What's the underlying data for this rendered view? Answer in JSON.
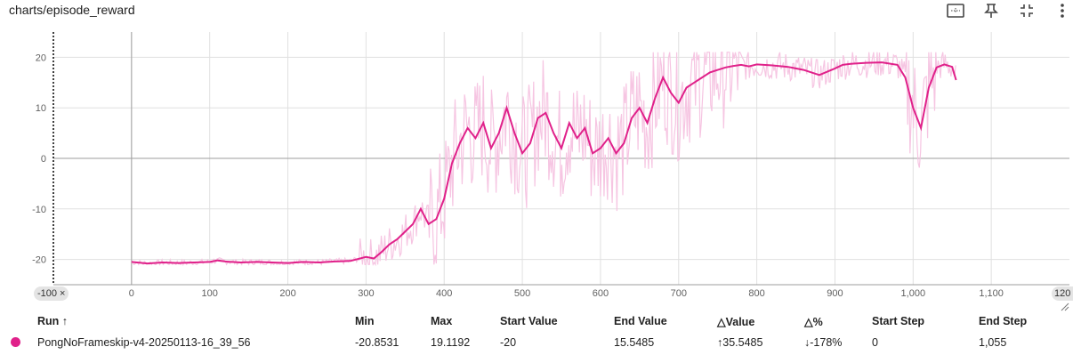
{
  "header": {
    "title": "charts/episode_reward",
    "tools": [
      "fit-domain-icon",
      "pin-icon",
      "collapse-icon",
      "more-vert-icon"
    ]
  },
  "axis_chips": {
    "x_min_label": "-100",
    "x_min_close": "×",
    "x_max_label": "120"
  },
  "colors": {
    "smoothed": "#e0218a",
    "raw": "#f6c5e2",
    "grid": "#e0e0e0",
    "zero_line": "#9e9e9e"
  },
  "chart_data": {
    "type": "line",
    "title": "",
    "xlabel": "",
    "ylabel": "",
    "xlim": [
      -100,
      1200
    ],
    "ylim": [
      -25,
      25
    ],
    "x_ticks": [
      "0",
      "100",
      "200",
      "300",
      "400",
      "500",
      "600",
      "700",
      "800",
      "900",
      "1,000",
      "1,100"
    ],
    "y_ticks": [
      "-20",
      "-10",
      "0",
      "10",
      "20"
    ],
    "grid": true,
    "series": [
      {
        "name": "PongNoFrameskip-v4-20250113-16_39_56",
        "x": [
          0,
          20,
          40,
          60,
          80,
          100,
          110,
          120,
          140,
          160,
          180,
          200,
          220,
          240,
          260,
          280,
          300,
          310,
          320,
          330,
          340,
          350,
          360,
          370,
          380,
          390,
          400,
          410,
          420,
          430,
          440,
          450,
          460,
          470,
          480,
          490,
          500,
          510,
          520,
          530,
          540,
          550,
          560,
          570,
          580,
          590,
          600,
          610,
          620,
          630,
          640,
          650,
          660,
          670,
          680,
          690,
          700,
          710,
          720,
          730,
          740,
          750,
          760,
          770,
          780,
          790,
          800,
          820,
          840,
          860,
          880,
          900,
          910,
          920,
          940,
          960,
          980,
          990,
          1000,
          1010,
          1020,
          1030,
          1040,
          1050,
          1055
        ],
        "y": [
          -20.5,
          -20.8,
          -20.6,
          -20.7,
          -20.6,
          -20.5,
          -20.2,
          -20.4,
          -20.6,
          -20.5,
          -20.6,
          -20.7,
          -20.5,
          -20.6,
          -20.4,
          -20.3,
          -19.5,
          -19.8,
          -18.5,
          -17,
          -16,
          -14.5,
          -13,
          -10,
          -13,
          -12,
          -8,
          -1,
          3,
          6,
          4,
          7,
          2,
          5,
          10,
          5,
          1,
          3,
          8,
          9,
          5,
          2,
          7,
          4,
          6,
          1,
          2,
          4,
          1,
          3,
          8,
          10,
          7,
          12,
          16,
          13,
          11,
          14,
          15,
          16,
          17,
          17.5,
          18,
          18.3,
          18.5,
          18.2,
          18.6,
          18.4,
          18.1,
          17.5,
          16.5,
          17.8,
          18.5,
          18.7,
          18.9,
          19,
          18.5,
          16,
          10,
          6,
          14,
          18,
          18.6,
          18.1,
          15.5
        ]
      }
    ]
  },
  "runs_table": {
    "headers": {
      "run": "Run ↑",
      "min": "Min",
      "max": "Max",
      "start_value": "Start Value",
      "end_value": "End Value",
      "delta_value": "△Value",
      "delta_pct": "△%",
      "start_step": "Start Step",
      "end_step": "End Step"
    },
    "rows": [
      {
        "run": "PongNoFrameskip-v4-20250113-16_39_56",
        "min": "-20.8531",
        "max": "19.1192",
        "start_value": "-20",
        "end_value": "15.5485",
        "delta_value": "35.5485",
        "delta_value_arrow": "↑",
        "delta_pct": "-178%",
        "delta_pct_arrow": "↓",
        "start_step": "0",
        "end_step": "1,055"
      }
    ]
  }
}
